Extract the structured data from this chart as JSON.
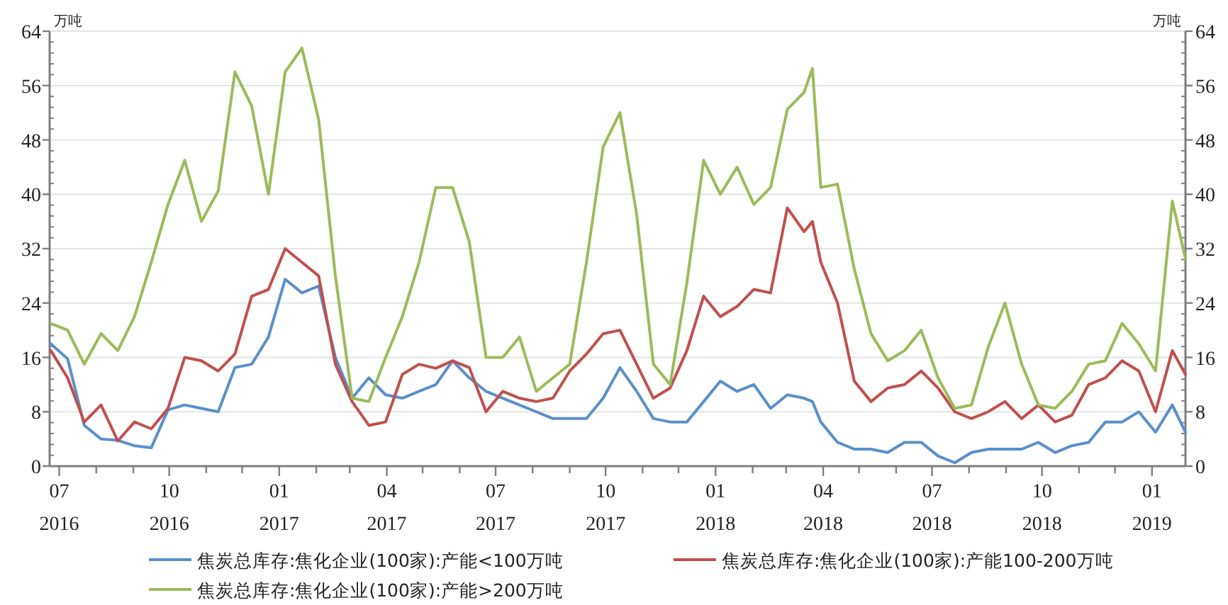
{
  "chart_data": {
    "type": "line",
    "ylabel": "万吨",
    "y2label": "万吨",
    "x": [
      "2016-06-24",
      "2016-07-08",
      "2016-07-22",
      "2016-08-05",
      "2016-08-19",
      "2016-09-02",
      "2016-09-16",
      "2016-09-30",
      "2016-10-14",
      "2016-10-28",
      "2016-11-11",
      "2016-11-25",
      "2016-12-09",
      "2016-12-23",
      "2017-01-06",
      "2017-01-20",
      "2017-02-03",
      "2017-02-17",
      "2017-03-03",
      "2017-03-17",
      "2017-03-31",
      "2017-04-14",
      "2017-04-28",
      "2017-05-12",
      "2017-05-26",
      "2017-06-09",
      "2017-06-23",
      "2017-07-07",
      "2017-07-21",
      "2017-08-04",
      "2017-08-18",
      "2017-09-01",
      "2017-09-15",
      "2017-09-29",
      "2017-10-13",
      "2017-10-27",
      "2017-11-10",
      "2017-11-24",
      "2017-12-08",
      "2017-12-22",
      "2018-01-05",
      "2018-01-19",
      "2018-02-02",
      "2018-02-16",
      "2018-03-02",
      "2018-03-16",
      "2018-03-23",
      "2018-03-30",
      "2018-04-13",
      "2018-04-27",
      "2018-05-11",
      "2018-05-25",
      "2018-06-08",
      "2018-06-22",
      "2018-07-06",
      "2018-07-20",
      "2018-08-03",
      "2018-08-17",
      "2018-08-31",
      "2018-09-14",
      "2018-09-28",
      "2018-10-12",
      "2018-10-26",
      "2018-11-09",
      "2018-11-23",
      "2018-12-07",
      "2018-12-21",
      "2019-01-04",
      "2019-01-18",
      "2019-01-29"
    ],
    "series": [
      {
        "name": "焦炭总库存:焦化企业(100家):产能<100万吨",
        "color": "#5b8fc9",
        "values": [
          18,
          15.8,
          6,
          4,
          3.8,
          3,
          2.7,
          8.3,
          9,
          8.5,
          8,
          14.5,
          15,
          19,
          27.5,
          25.5,
          26.5,
          16,
          10,
          13,
          10.5,
          10,
          11,
          12,
          15.5,
          13,
          11,
          10,
          9,
          8,
          7,
          7,
          7,
          10,
          14.5,
          11,
          7,
          6.5,
          6.5,
          9.5,
          12.5,
          11,
          12,
          8.5,
          10.5,
          10,
          9.5,
          6.5,
          3.5,
          2.5,
          2.5,
          2,
          3.5,
          3.5,
          1.5,
          0.5,
          2,
          2.5,
          2.5,
          2.5,
          3.5,
          2,
          3,
          3.5,
          6.5,
          6.5,
          8,
          5,
          9,
          5
        ]
      },
      {
        "name": "焦炭总库存:焦化企业(100家):产能100-200万吨",
        "color": "#c0504d",
        "values": [
          17,
          13,
          6.5,
          9,
          3.7,
          6.5,
          5.5,
          8.5,
          16,
          15.5,
          14,
          16.5,
          25,
          26,
          32,
          30,
          28,
          15,
          9.5,
          6,
          6.5,
          13.5,
          15,
          14.4,
          15.5,
          14.5,
          8,
          11,
          10,
          9.5,
          10,
          14,
          16.5,
          19.5,
          20,
          15,
          10,
          11.5,
          17,
          25,
          22,
          23.5,
          26,
          25.5,
          38,
          34.5,
          36,
          30,
          24,
          12.5,
          9.5,
          11.5,
          12,
          14,
          11.5,
          8,
          7,
          8,
          9.5,
          7,
          9,
          6.5,
          7.5,
          12,
          13,
          15.5,
          14,
          8,
          17,
          13.5
        ]
      },
      {
        "name": "焦炭总库存:焦化企业(100家):产能>200万吨",
        "color": "#9bbb59",
        "values": [
          21,
          20,
          15,
          19.5,
          17,
          22,
          30,
          38.5,
          45,
          36,
          40.5,
          58,
          53,
          40,
          58,
          61.5,
          51,
          28,
          10,
          9.5,
          16,
          22,
          30,
          41,
          41,
          33,
          16,
          16,
          19,
          11,
          13,
          15,
          30,
          47,
          52,
          37,
          15,
          12,
          27,
          45,
          40,
          44,
          38.5,
          41,
          52.5,
          55,
          58.5,
          41,
          41.5,
          29,
          19.5,
          15.5,
          17,
          20,
          13,
          8.5,
          9,
          17.5,
          24,
          15,
          9,
          8.5,
          11,
          15,
          15.5,
          21,
          18,
          14,
          39,
          30.5
        ]
      }
    ],
    "ylim": [
      0,
      64
    ],
    "yticks": [
      0,
      8,
      16,
      24,
      32,
      40,
      48,
      56,
      64
    ],
    "y2lim": [
      0,
      64
    ],
    "y2ticks": [
      0,
      8,
      16,
      24,
      32,
      40,
      48,
      56,
      64
    ],
    "xlim": [
      "2016-06-23",
      "2019-01-29"
    ],
    "xticks": [
      {
        "value": "2016-07-01",
        "label": "07\n2016"
      },
      {
        "value": "2016-08-01",
        "label": null
      },
      {
        "value": "2016-09-01",
        "label": null
      },
      {
        "value": "2016-10-01",
        "label": "10\n2016"
      },
      {
        "value": "2016-11-01",
        "label": null
      },
      {
        "value": "2016-12-01",
        "label": null
      },
      {
        "value": "2017-01-01",
        "label": "01\n2017"
      },
      {
        "value": "2017-02-01",
        "label": null
      },
      {
        "value": "2017-03-01",
        "label": null
      },
      {
        "value": "2017-04-01",
        "label": "04\n2017"
      },
      {
        "value": "2017-05-01",
        "label": null
      },
      {
        "value": "2017-06-01",
        "label": null
      },
      {
        "value": "2017-07-01",
        "label": "07\n2017"
      },
      {
        "value": "2017-08-01",
        "label": null
      },
      {
        "value": "2017-09-01",
        "label": null
      },
      {
        "value": "2017-10-01",
        "label": "10\n2017"
      },
      {
        "value": "2017-11-01",
        "label": null
      },
      {
        "value": "2017-12-01",
        "label": null
      },
      {
        "value": "2018-01-01",
        "label": "01\n2018"
      },
      {
        "value": "2018-02-01",
        "label": null
      },
      {
        "value": "2018-03-01",
        "label": null
      },
      {
        "value": "2018-04-01",
        "label": "04\n2018"
      },
      {
        "value": "2018-05-01",
        "label": null
      },
      {
        "value": "2018-06-01",
        "label": null
      },
      {
        "value": "2018-07-01",
        "label": "07\n2018"
      },
      {
        "value": "2018-08-01",
        "label": null
      },
      {
        "value": "2018-09-01",
        "label": null
      },
      {
        "value": "2018-10-01",
        "label": "10\n2018"
      },
      {
        "value": "2018-11-01",
        "label": null
      },
      {
        "value": "2018-12-01",
        "label": null
      },
      {
        "value": "2019-01-01",
        "label": "01\n2019"
      }
    ],
    "grid": "y",
    "legend": "bottom",
    "line_style": "solid",
    "marker": "none"
  }
}
